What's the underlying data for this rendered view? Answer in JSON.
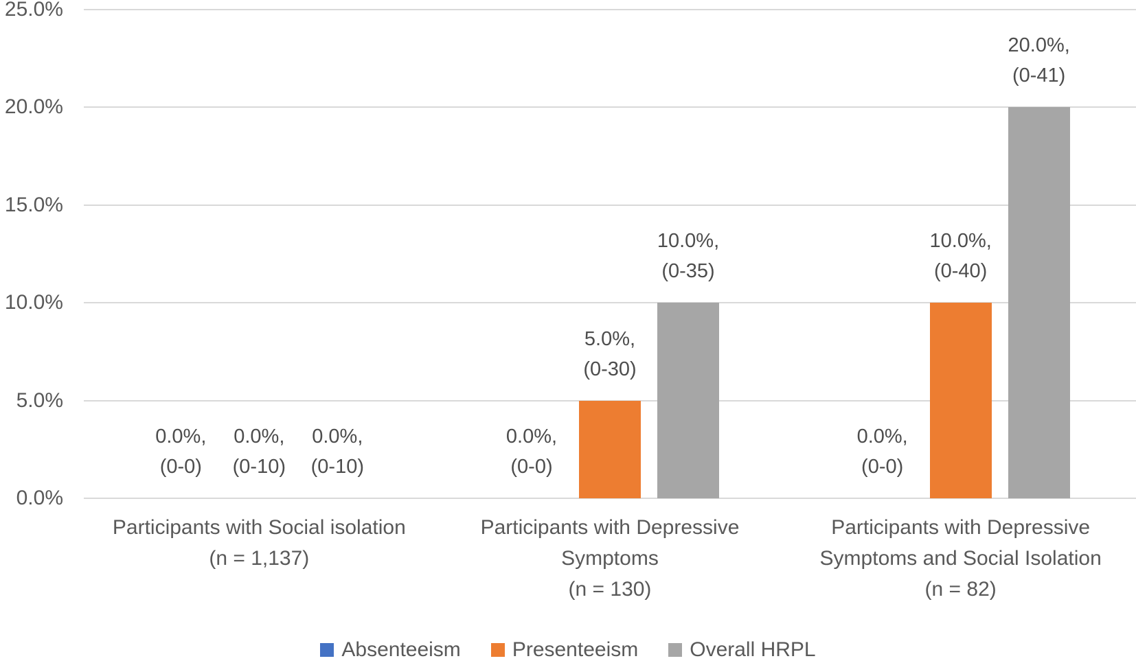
{
  "chart_data": {
    "type": "bar",
    "title": "",
    "xlabel": "",
    "ylabel": "",
    "ylim": [
      0,
      25
    ],
    "ytick_step": 5,
    "yticks": [
      "0.0%",
      "5.0%",
      "10.0%",
      "15.0%",
      "20.0%",
      "25.0%"
    ],
    "grid": "horizontal",
    "legend_position": "bottom",
    "categories": [
      {
        "lines": [
          "Participants with Social isolation",
          "(n = 1,137)"
        ]
      },
      {
        "lines": [
          "Participants with Depressive",
          "Symptoms",
          "(n = 130)"
        ]
      },
      {
        "lines": [
          "Participants with Depressive",
          "Symptoms and Social Isolation",
          "(n = 82)"
        ]
      }
    ],
    "series": [
      {
        "name": "Absenteeism",
        "color": "#4472C4",
        "values": [
          0,
          0,
          0
        ],
        "labels": [
          [
            "0.0%,",
            "(0-0)"
          ],
          [
            "0.0%,",
            "(0-0)"
          ],
          [
            "0.0%,",
            "(0-0)"
          ]
        ]
      },
      {
        "name": "Presenteeism",
        "color": "#ED7D31",
        "values": [
          0,
          5,
          10
        ],
        "labels": [
          [
            "0.0%,",
            "(0-10)"
          ],
          [
            "5.0%,",
            "(0-30)"
          ],
          [
            "10.0%,",
            "(0-40)"
          ]
        ]
      },
      {
        "name": "Overall HRPL",
        "color": "#A6A6A6",
        "values": [
          0,
          10,
          20
        ],
        "labels": [
          [
            "0.0%,",
            "(0-10)"
          ],
          [
            "10.0%,",
            "(0-35)"
          ],
          [
            "20.0%,",
            "(0-41)"
          ]
        ]
      }
    ],
    "colors": {
      "gridline": "#D9D9D9",
      "axis_text": "#595959",
      "data_label_text": "#4d4d4d"
    }
  }
}
